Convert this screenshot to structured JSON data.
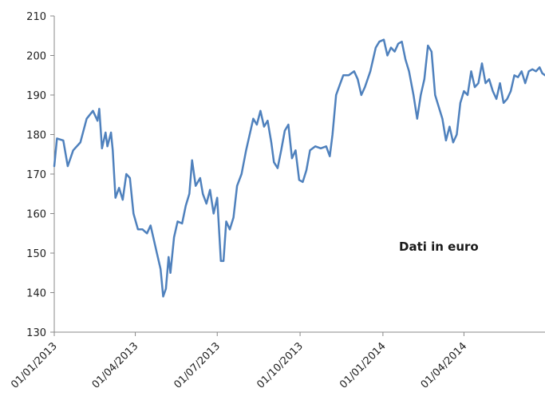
{
  "chart_data": {
    "type": "line",
    "title": "",
    "xlabel": "",
    "ylabel": "",
    "annotation": "Dati in euro",
    "ylim": [
      130,
      210
    ],
    "y_ticks": [
      130,
      140,
      150,
      160,
      170,
      180,
      190,
      200,
      210
    ],
    "x_ticks": [
      "01/01/2013",
      "01/04/2013",
      "01/07/2013",
      "01/10/2013",
      "01/01/2014",
      "01/04/2014"
    ],
    "xlim": [
      "01/01/2013",
      "30/06/2014"
    ],
    "grid": false,
    "line_color": "#4f81bd",
    "series": [
      {
        "values": [
          [
            "01/01/2013",
            172.0
          ],
          [
            "04/01/2013",
            179.0
          ],
          [
            "11/01/2013",
            178.5
          ],
          [
            "16/01/2013",
            172.0
          ],
          [
            "22/01/2013",
            176.0
          ],
          [
            "30/01/2013",
            178.0
          ],
          [
            "06/02/2013",
            184.0
          ],
          [
            "13/02/2013",
            186.0
          ],
          [
            "18/02/2013",
            183.5
          ],
          [
            "20/02/2013",
            186.5
          ],
          [
            "23/02/2013",
            176.5
          ],
          [
            "27/02/2013",
            180.5
          ],
          [
            "01/03/2013",
            177.0
          ],
          [
            "05/03/2013",
            180.5
          ],
          [
            "07/03/2013",
            176.0
          ],
          [
            "10/03/2013",
            164.0
          ],
          [
            "14/03/2013",
            166.5
          ],
          [
            "18/03/2013",
            163.5
          ],
          [
            "22/03/2013",
            170.0
          ],
          [
            "26/03/2013",
            169.0
          ],
          [
            "30/03/2013",
            160.0
          ],
          [
            "04/04/2013",
            156.0
          ],
          [
            "09/04/2013",
            156.0
          ],
          [
            "14/04/2013",
            155.0
          ],
          [
            "18/04/2013",
            157.0
          ],
          [
            "21/04/2013",
            154.0
          ],
          [
            "25/04/2013",
            150.0
          ],
          [
            "29/04/2013",
            146.0
          ],
          [
            "02/05/2013",
            139.0
          ],
          [
            "05/05/2013",
            141.0
          ],
          [
            "08/05/2013",
            149.0
          ],
          [
            "10/05/2013",
            145.0
          ],
          [
            "14/05/2013",
            154.0
          ],
          [
            "18/05/2013",
            158.0
          ],
          [
            "23/05/2013",
            157.5
          ],
          [
            "27/05/2013",
            162.0
          ],
          [
            "31/05/2013",
            165.0
          ],
          [
            "03/06/2013",
            173.5
          ],
          [
            "07/06/2013",
            167.0
          ],
          [
            "12/06/2013",
            169.0
          ],
          [
            "15/06/2013",
            165.0
          ],
          [
            "19/06/2013",
            162.5
          ],
          [
            "23/06/2013",
            166.0
          ],
          [
            "27/06/2013",
            160.0
          ],
          [
            "01/07/2013",
            164.0
          ],
          [
            "05/07/2013",
            148.0
          ],
          [
            "08/07/2013",
            148.0
          ],
          [
            "11/07/2013",
            158.0
          ],
          [
            "15/07/2013",
            156.0
          ],
          [
            "19/07/2013",
            159.0
          ],
          [
            "23/07/2013",
            167.0
          ],
          [
            "28/07/2013",
            170.0
          ],
          [
            "02/08/2013",
            176.0
          ],
          [
            "06/08/2013",
            180.0
          ],
          [
            "10/08/2013",
            184.0
          ],
          [
            "14/08/2013",
            182.5
          ],
          [
            "18/08/2013",
            186.0
          ],
          [
            "22/08/2013",
            182.0
          ],
          [
            "26/08/2013",
            183.5
          ],
          [
            "30/08/2013",
            178.0
          ],
          [
            "02/09/2013",
            173.0
          ],
          [
            "06/09/2013",
            171.5
          ],
          [
            "10/09/2013",
            176.0
          ],
          [
            "14/09/2013",
            181.0
          ],
          [
            "18/09/2013",
            182.5
          ],
          [
            "22/09/2013",
            174.0
          ],
          [
            "26/09/2013",
            176.0
          ],
          [
            "30/09/2013",
            168.5
          ],
          [
            "04/10/2013",
            168.0
          ],
          [
            "08/10/2013",
            171.0
          ],
          [
            "12/10/2013",
            176.0
          ],
          [
            "18/10/2013",
            177.0
          ],
          [
            "24/10/2013",
            176.5
          ],
          [
            "30/10/2013",
            177.0
          ],
          [
            "03/11/2013",
            174.5
          ],
          [
            "06/11/2013",
            180.0
          ],
          [
            "10/11/2013",
            190.0
          ],
          [
            "14/11/2013",
            192.5
          ],
          [
            "18/11/2013",
            195.0
          ],
          [
            "24/11/2013",
            195.0
          ],
          [
            "30/11/2013",
            196.0
          ],
          [
            "04/12/2013",
            194.0
          ],
          [
            "08/12/2013",
            190.0
          ],
          [
            "12/12/2013",
            192.0
          ],
          [
            "18/12/2013",
            196.0
          ],
          [
            "24/12/2013",
            202.0
          ],
          [
            "28/12/2013",
            203.5
          ],
          [
            "02/01/2014",
            204.0
          ],
          [
            "06/01/2014",
            200.0
          ],
          [
            "10/01/2014",
            202.0
          ],
          [
            "14/01/2014",
            201.0
          ],
          [
            "18/01/2014",
            203.0
          ],
          [
            "22/01/2014",
            203.5
          ],
          [
            "26/01/2014",
            199.0
          ],
          [
            "30/01/2014",
            196.0
          ],
          [
            "04/02/2014",
            190.0
          ],
          [
            "08/02/2014",
            184.0
          ],
          [
            "12/02/2014",
            190.0
          ],
          [
            "16/02/2014",
            194.0
          ],
          [
            "20/02/2014",
            202.5
          ],
          [
            "24/02/2014",
            201.0
          ],
          [
            "28/02/2014",
            190.0
          ],
          [
            "04/03/2014",
            187.0
          ],
          [
            "08/03/2014",
            184.0
          ],
          [
            "12/03/2014",
            178.5
          ],
          [
            "16/03/2014",
            182.0
          ],
          [
            "20/03/2014",
            178.0
          ],
          [
            "24/03/2014",
            180.0
          ],
          [
            "28/03/2014",
            188.0
          ],
          [
            "01/04/2014",
            191.0
          ],
          [
            "05/04/2014",
            190.0
          ],
          [
            "09/04/2014",
            196.0
          ],
          [
            "13/04/2014",
            192.0
          ],
          [
            "17/04/2014",
            193.0
          ],
          [
            "21/04/2014",
            198.0
          ],
          [
            "25/04/2014",
            193.0
          ],
          [
            "29/04/2014",
            194.0
          ],
          [
            "03/05/2014",
            191.0
          ],
          [
            "07/05/2014",
            189.0
          ],
          [
            "11/05/2014",
            193.0
          ],
          [
            "15/05/2014",
            188.0
          ],
          [
            "19/05/2014",
            189.0
          ],
          [
            "23/05/2014",
            191.0
          ],
          [
            "27/05/2014",
            195.0
          ],
          [
            "31/05/2014",
            194.5
          ],
          [
            "04/06/2014",
            196.0
          ],
          [
            "08/06/2014",
            193.0
          ],
          [
            "12/06/2014",
            196.0
          ],
          [
            "16/06/2014",
            196.5
          ],
          [
            "20/06/2014",
            196.0
          ],
          [
            "24/06/2014",
            197.0
          ],
          [
            "27/06/2014",
            195.5
          ],
          [
            "30/06/2014",
            195.0
          ]
        ]
      }
    ]
  }
}
